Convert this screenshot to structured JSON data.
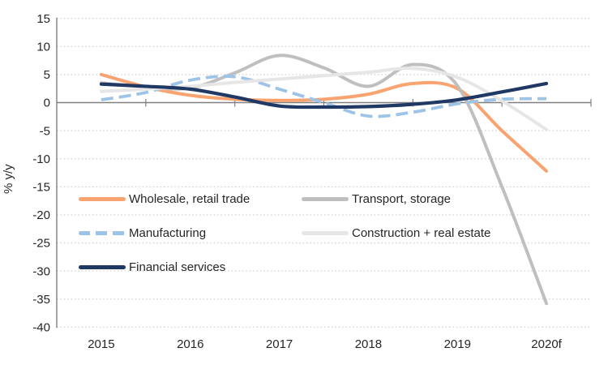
{
  "chart_data": {
    "type": "line",
    "title": "",
    "xlabel": "",
    "ylabel": "% y/y",
    "ylim": [
      -40,
      15
    ],
    "yticks": [
      15,
      10,
      5,
      0,
      -5,
      -10,
      -15,
      -20,
      -25,
      -30,
      -35,
      -40
    ],
    "categories": [
      "2015",
      "2016",
      "2017",
      "2018",
      "2019",
      "2020f"
    ],
    "x": [
      2015,
      2015.5,
      2016,
      2016.5,
      2017,
      2017.5,
      2018,
      2018.5,
      2019,
      2019.5,
      2020
    ],
    "series": [
      {
        "name": "Wholesale, retail trade",
        "color": "#F9A470",
        "style": "solid",
        "z": 0,
        "values": [
          5.0,
          2.8,
          1.3,
          0.6,
          0.4,
          0.6,
          1.5,
          3.4,
          2.5,
          -5.0,
          -12.2
        ]
      },
      {
        "name": "Transport, storage",
        "color": "#BFBFBF",
        "style": "solid",
        "z": 1,
        "values": [
          3.5,
          2.8,
          2.6,
          5.3,
          8.4,
          6.2,
          2.9,
          6.8,
          3.0,
          -15.0,
          -35.8
        ]
      },
      {
        "name": "Manufacturing",
        "color": "#9DC3E6",
        "style": "dashed",
        "z": 2,
        "values": [
          0.5,
          1.8,
          4.0,
          4.6,
          2.4,
          0.0,
          -2.4,
          -1.7,
          -0.2,
          0.6,
          0.7
        ]
      },
      {
        "name": "Construction + real estate",
        "color": "#E7E6E6",
        "style": "solid",
        "z": 3,
        "values": [
          2.0,
          2.4,
          2.9,
          3.6,
          4.2,
          4.8,
          5.4,
          6.1,
          4.5,
          0.3,
          -4.8
        ]
      },
      {
        "name": "Financial services",
        "color": "#1F3864",
        "style": "solid",
        "z": 4,
        "values": [
          3.3,
          2.9,
          2.4,
          1.0,
          -0.6,
          -0.8,
          -0.7,
          -0.3,
          0.5,
          1.9,
          3.4
        ]
      }
    ],
    "grid": "horizontal-dotted",
    "legend_position": "inside-lower-left",
    "axis_color": "#808080",
    "gridline_color": "#D6D6D6",
    "text_color": "#262626"
  }
}
